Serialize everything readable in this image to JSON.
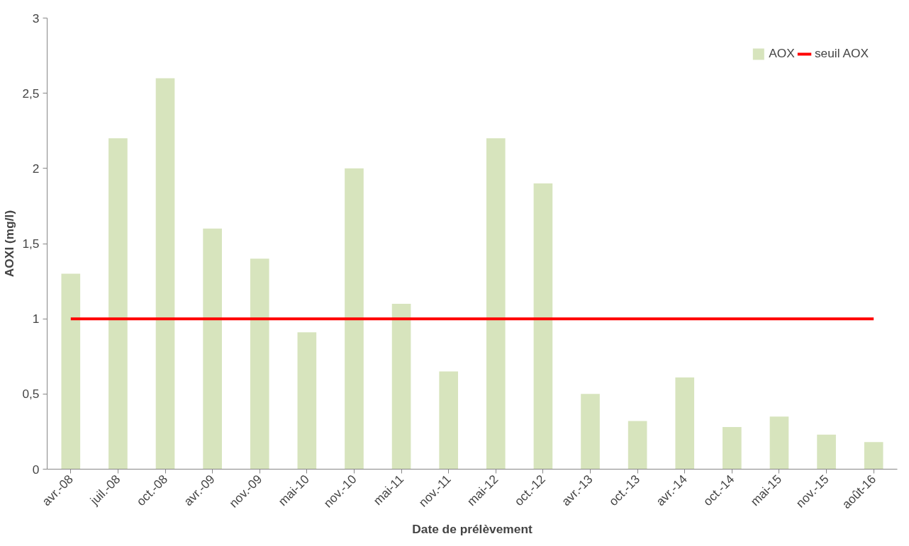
{
  "chart_data": {
    "type": "bar",
    "xlabel": "Date de prélèvement",
    "ylabel": "AOXI (mg/l)",
    "categories": [
      "avr.-08",
      "juil.-08",
      "oct.-08",
      "avr.-09",
      "nov.-09",
      "mai-10",
      "nov.-10",
      "mai-11",
      "nov.-11",
      "mai-12",
      "oct.-12",
      "avr.-13",
      "oct.-13",
      "avr.-14",
      "oct.-14",
      "mai-15",
      "nov.-15",
      "août-16"
    ],
    "series": [
      {
        "name": "AOX",
        "color": "#d7e4bd",
        "values": [
          1.3,
          2.2,
          2.6,
          1.6,
          1.4,
          0.91,
          2.0,
          1.1,
          0.65,
          2.2,
          1.9,
          0.5,
          0.32,
          0.61,
          0.28,
          0.35,
          0.23,
          0.18
        ]
      },
      {
        "name": "seuil AOX",
        "type": "line",
        "color": "#ff0000",
        "values": [
          1,
          1,
          1,
          1,
          1,
          1,
          1,
          1,
          1,
          1,
          1,
          1,
          1,
          1,
          1,
          1,
          1,
          1
        ]
      }
    ],
    "ylim": [
      0,
      3
    ],
    "yticks": [
      0,
      {
        "value": 0.5,
        "label": "0,5"
      },
      1,
      {
        "value": 1.5,
        "label": "1,5"
      },
      2,
      {
        "value": 2.5,
        "label": "2,5"
      },
      3
    ],
    "grid": false,
    "legend": "top right"
  }
}
